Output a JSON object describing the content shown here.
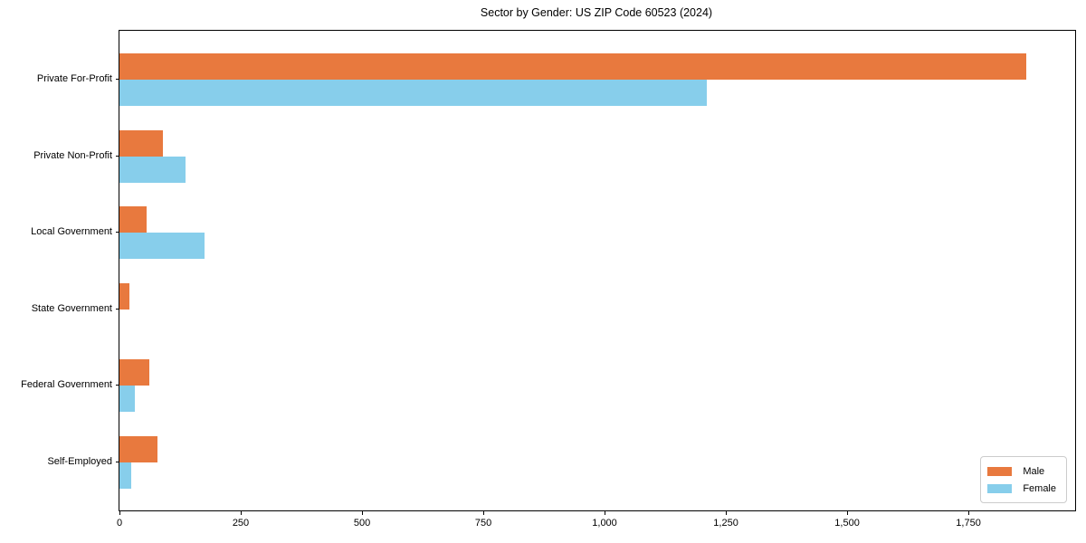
{
  "chart_data": {
    "type": "bar",
    "orientation": "horizontal",
    "title": "Sector by Gender: US ZIP Code 60523 (2024)",
    "categories": [
      "Private For-Profit",
      "Private Non-Profit",
      "Local Government",
      "State Government",
      "Federal Government",
      "Self-Employed"
    ],
    "series": [
      {
        "name": "Male",
        "color": "#e8793e",
        "values": [
          1870,
          90,
          55,
          20,
          62,
          78
        ]
      },
      {
        "name": "Female",
        "color": "#87ceeb",
        "values": [
          1210,
          137,
          175,
          0,
          32,
          25
        ]
      }
    ],
    "xlabel": "",
    "ylabel": "",
    "xlim": [
      0,
      1970
    ],
    "xticks": [
      0,
      250,
      500,
      750,
      1000,
      1250,
      1500,
      1750
    ],
    "xtick_labels": [
      "0",
      "250",
      "500",
      "750",
      "1,000",
      "1,250",
      "1,500",
      "1,750"
    ],
    "grid": false,
    "legend": {
      "position": "lower right",
      "entries": [
        "Male",
        "Female"
      ]
    },
    "colors": {
      "background": "#ffffff",
      "spine": "#000000",
      "text": "#000000",
      "legend_border": "#cccccc"
    }
  }
}
